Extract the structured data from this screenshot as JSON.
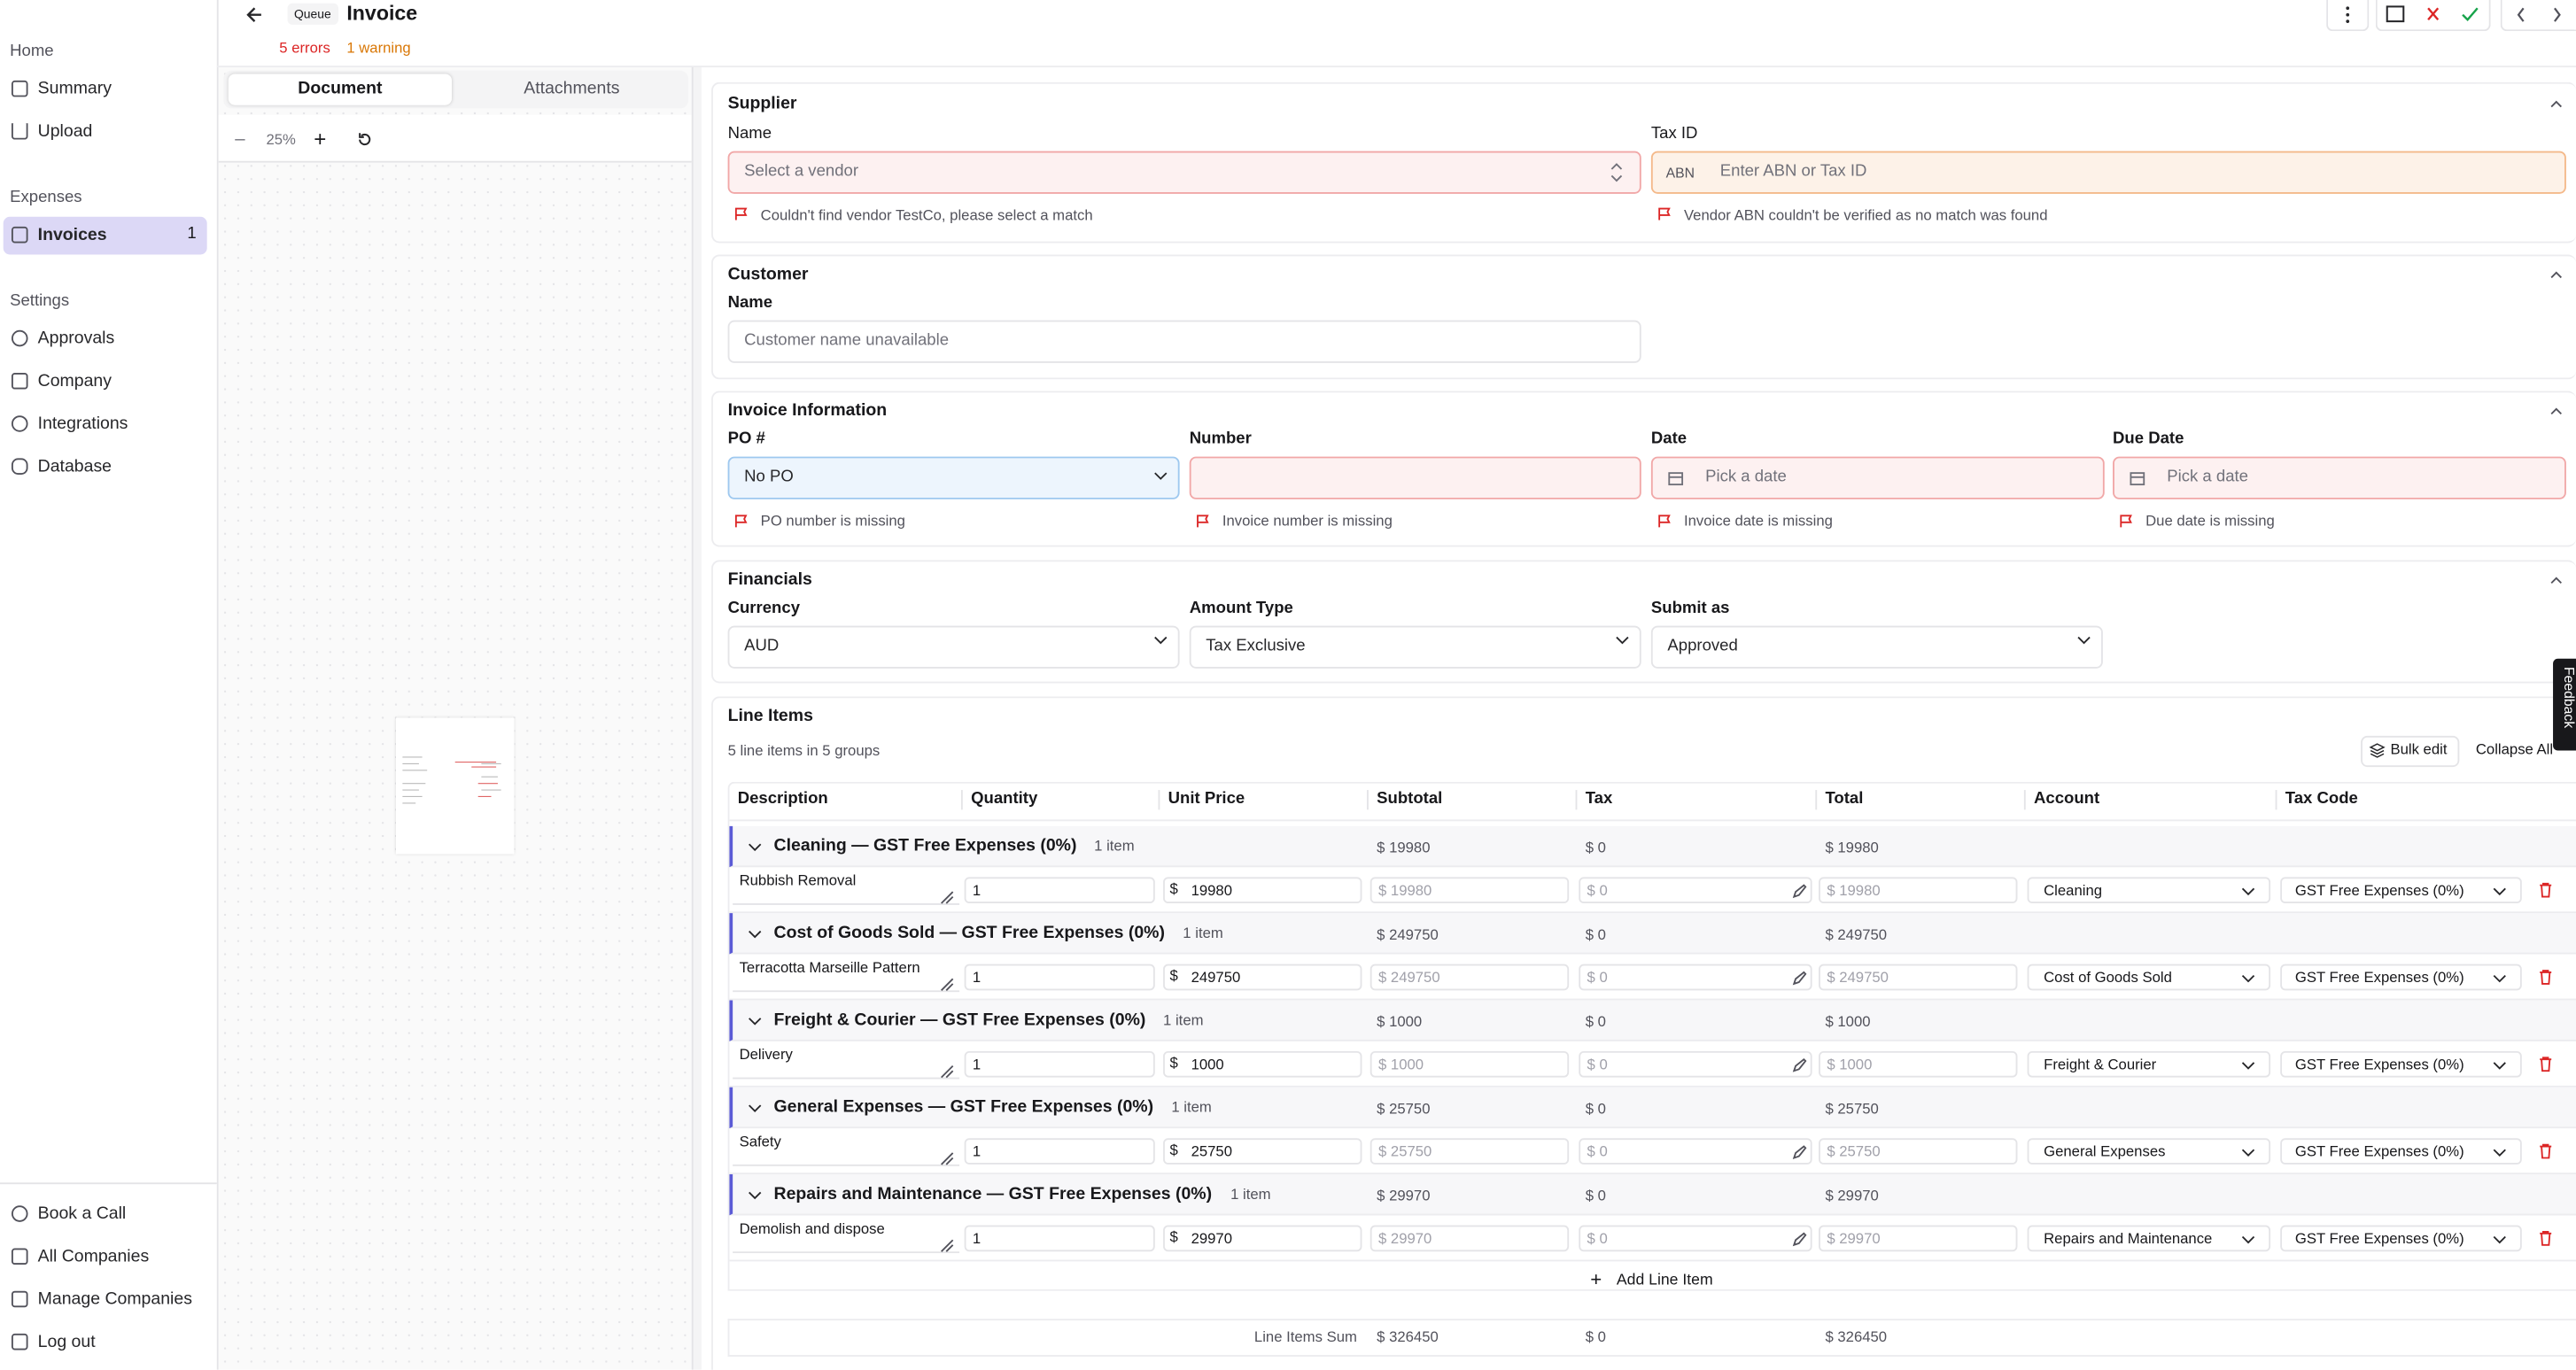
{
  "sidebar": {
    "home": {
      "label": "Home",
      "items": [
        "Summary",
        "Upload"
      ]
    },
    "expenses": {
      "label": "Expenses",
      "items": [
        "Invoices"
      ],
      "badge": "1"
    },
    "settings": {
      "label": "Settings",
      "items": [
        "Approvals",
        "Company",
        "Integrations",
        "Database"
      ]
    },
    "footer": [
      "Book a Call",
      "All Companies",
      "Manage Companies",
      "Log out"
    ]
  },
  "header": {
    "badge": "Queue",
    "title": "Invoice",
    "errors": "5 errors",
    "warnings": "1 warning"
  },
  "viewer": {
    "tabs": [
      "Document",
      "Attachments"
    ],
    "zoom": "25%"
  },
  "supplier": {
    "title": "Supplier",
    "name_label": "Name",
    "name_placeholder": "Select a vendor",
    "name_error": "Couldn't find vendor TestCo, please select a match",
    "tax_label": "Tax ID",
    "tax_prefix": "ABN",
    "tax_placeholder": "Enter ABN or Tax ID",
    "tax_warning": "Vendor ABN couldn't be verified as no match was found"
  },
  "customer": {
    "title": "Customer",
    "name_label": "Name",
    "name_placeholder": "Customer name unavailable"
  },
  "invoice_info": {
    "title": "Invoice Information",
    "po_label": "PO #",
    "po_value": "No PO",
    "po_error": "PO number is missing",
    "number_label": "Number",
    "number_error": "Invoice number is missing",
    "date_label": "Date",
    "date_placeholder": "Pick a date",
    "date_error": "Invoice date is missing",
    "due_label": "Due Date",
    "due_placeholder": "Pick a date",
    "due_error": "Due date is missing"
  },
  "financials": {
    "title": "Financials",
    "fields": [
      {
        "label": "Currency",
        "value": "AUD"
      },
      {
        "label": "Amount Type",
        "value": "Tax Exclusive"
      },
      {
        "label": "Submit as",
        "value": "Approved"
      }
    ]
  },
  "line_items": {
    "title": "Line Items",
    "summary": "5 line items in 5 groups",
    "bulk_edit": "Bulk edit",
    "collapse_all": "Collapse All",
    "columns": [
      "Description",
      "Quantity",
      "Unit Price",
      "Subtotal",
      "Tax",
      "Total",
      "Account",
      "Tax Code"
    ],
    "groups": [
      {
        "title": "Cleaning — GST Free Expenses (0%)",
        "count": "1 item",
        "subtotal": "$ 19980",
        "tax": "$ 0",
        "total": "$ 19980",
        "item": {
          "description": "Rubbish Removal",
          "quantity": "1",
          "currency": "$",
          "unit_price": "19980",
          "subtotal": "$ 19980",
          "tax": "$ 0",
          "total": "$ 19980",
          "account": "Cleaning",
          "tax_code": "GST Free Expenses (0%)"
        }
      },
      {
        "title": "Cost of Goods Sold — GST Free Expenses (0%)",
        "count": "1 item",
        "subtotal": "$ 249750",
        "tax": "$ 0",
        "total": "$ 249750",
        "item": {
          "description": "Terracotta Marseille Pattern",
          "quantity": "1",
          "currency": "$",
          "unit_price": "249750",
          "subtotal": "$ 249750",
          "tax": "$ 0",
          "total": "$ 249750",
          "account": "Cost of Goods Sold",
          "tax_code": "GST Free Expenses (0%)"
        }
      },
      {
        "title": "Freight & Courier — GST Free Expenses (0%)",
        "count": "1 item",
        "subtotal": "$ 1000",
        "tax": "$ 0",
        "total": "$ 1000",
        "item": {
          "description": "Delivery",
          "quantity": "1",
          "currency": "$",
          "unit_price": "1000",
          "subtotal": "$ 1000",
          "tax": "$ 0",
          "total": "$ 1000",
          "account": "Freight & Courier",
          "tax_code": "GST Free Expenses (0%)"
        }
      },
      {
        "title": "General Expenses — GST Free Expenses (0%)",
        "count": "1 item",
        "subtotal": "$ 25750",
        "tax": "$ 0",
        "total": "$ 25750",
        "item": {
          "description": "Safety",
          "quantity": "1",
          "currency": "$",
          "unit_price": "25750",
          "subtotal": "$ 25750",
          "tax": "$ 0",
          "total": "$ 25750",
          "account": "General Expenses",
          "tax_code": "GST Free Expenses (0%)"
        }
      },
      {
        "title": "Repairs and Maintenance — GST Free Expenses (0%)",
        "count": "1 item",
        "subtotal": "$ 29970",
        "tax": "$ 0",
        "total": "$ 29970",
        "item": {
          "description": "Demolish and dispose",
          "quantity": "1",
          "currency": "$",
          "unit_price": "29970",
          "subtotal": "$ 29970",
          "tax": "$ 0",
          "total": "$ 29970",
          "account": "Repairs and Maintenance",
          "tax_code": "GST Free Expenses (0%)"
        }
      }
    ],
    "add": "Add Line Item",
    "sum": {
      "label": "Line Items Sum",
      "subtotal": "$ 326450",
      "tax": "$ 0",
      "total": "$ 326450"
    }
  },
  "feedback": "Feedback"
}
